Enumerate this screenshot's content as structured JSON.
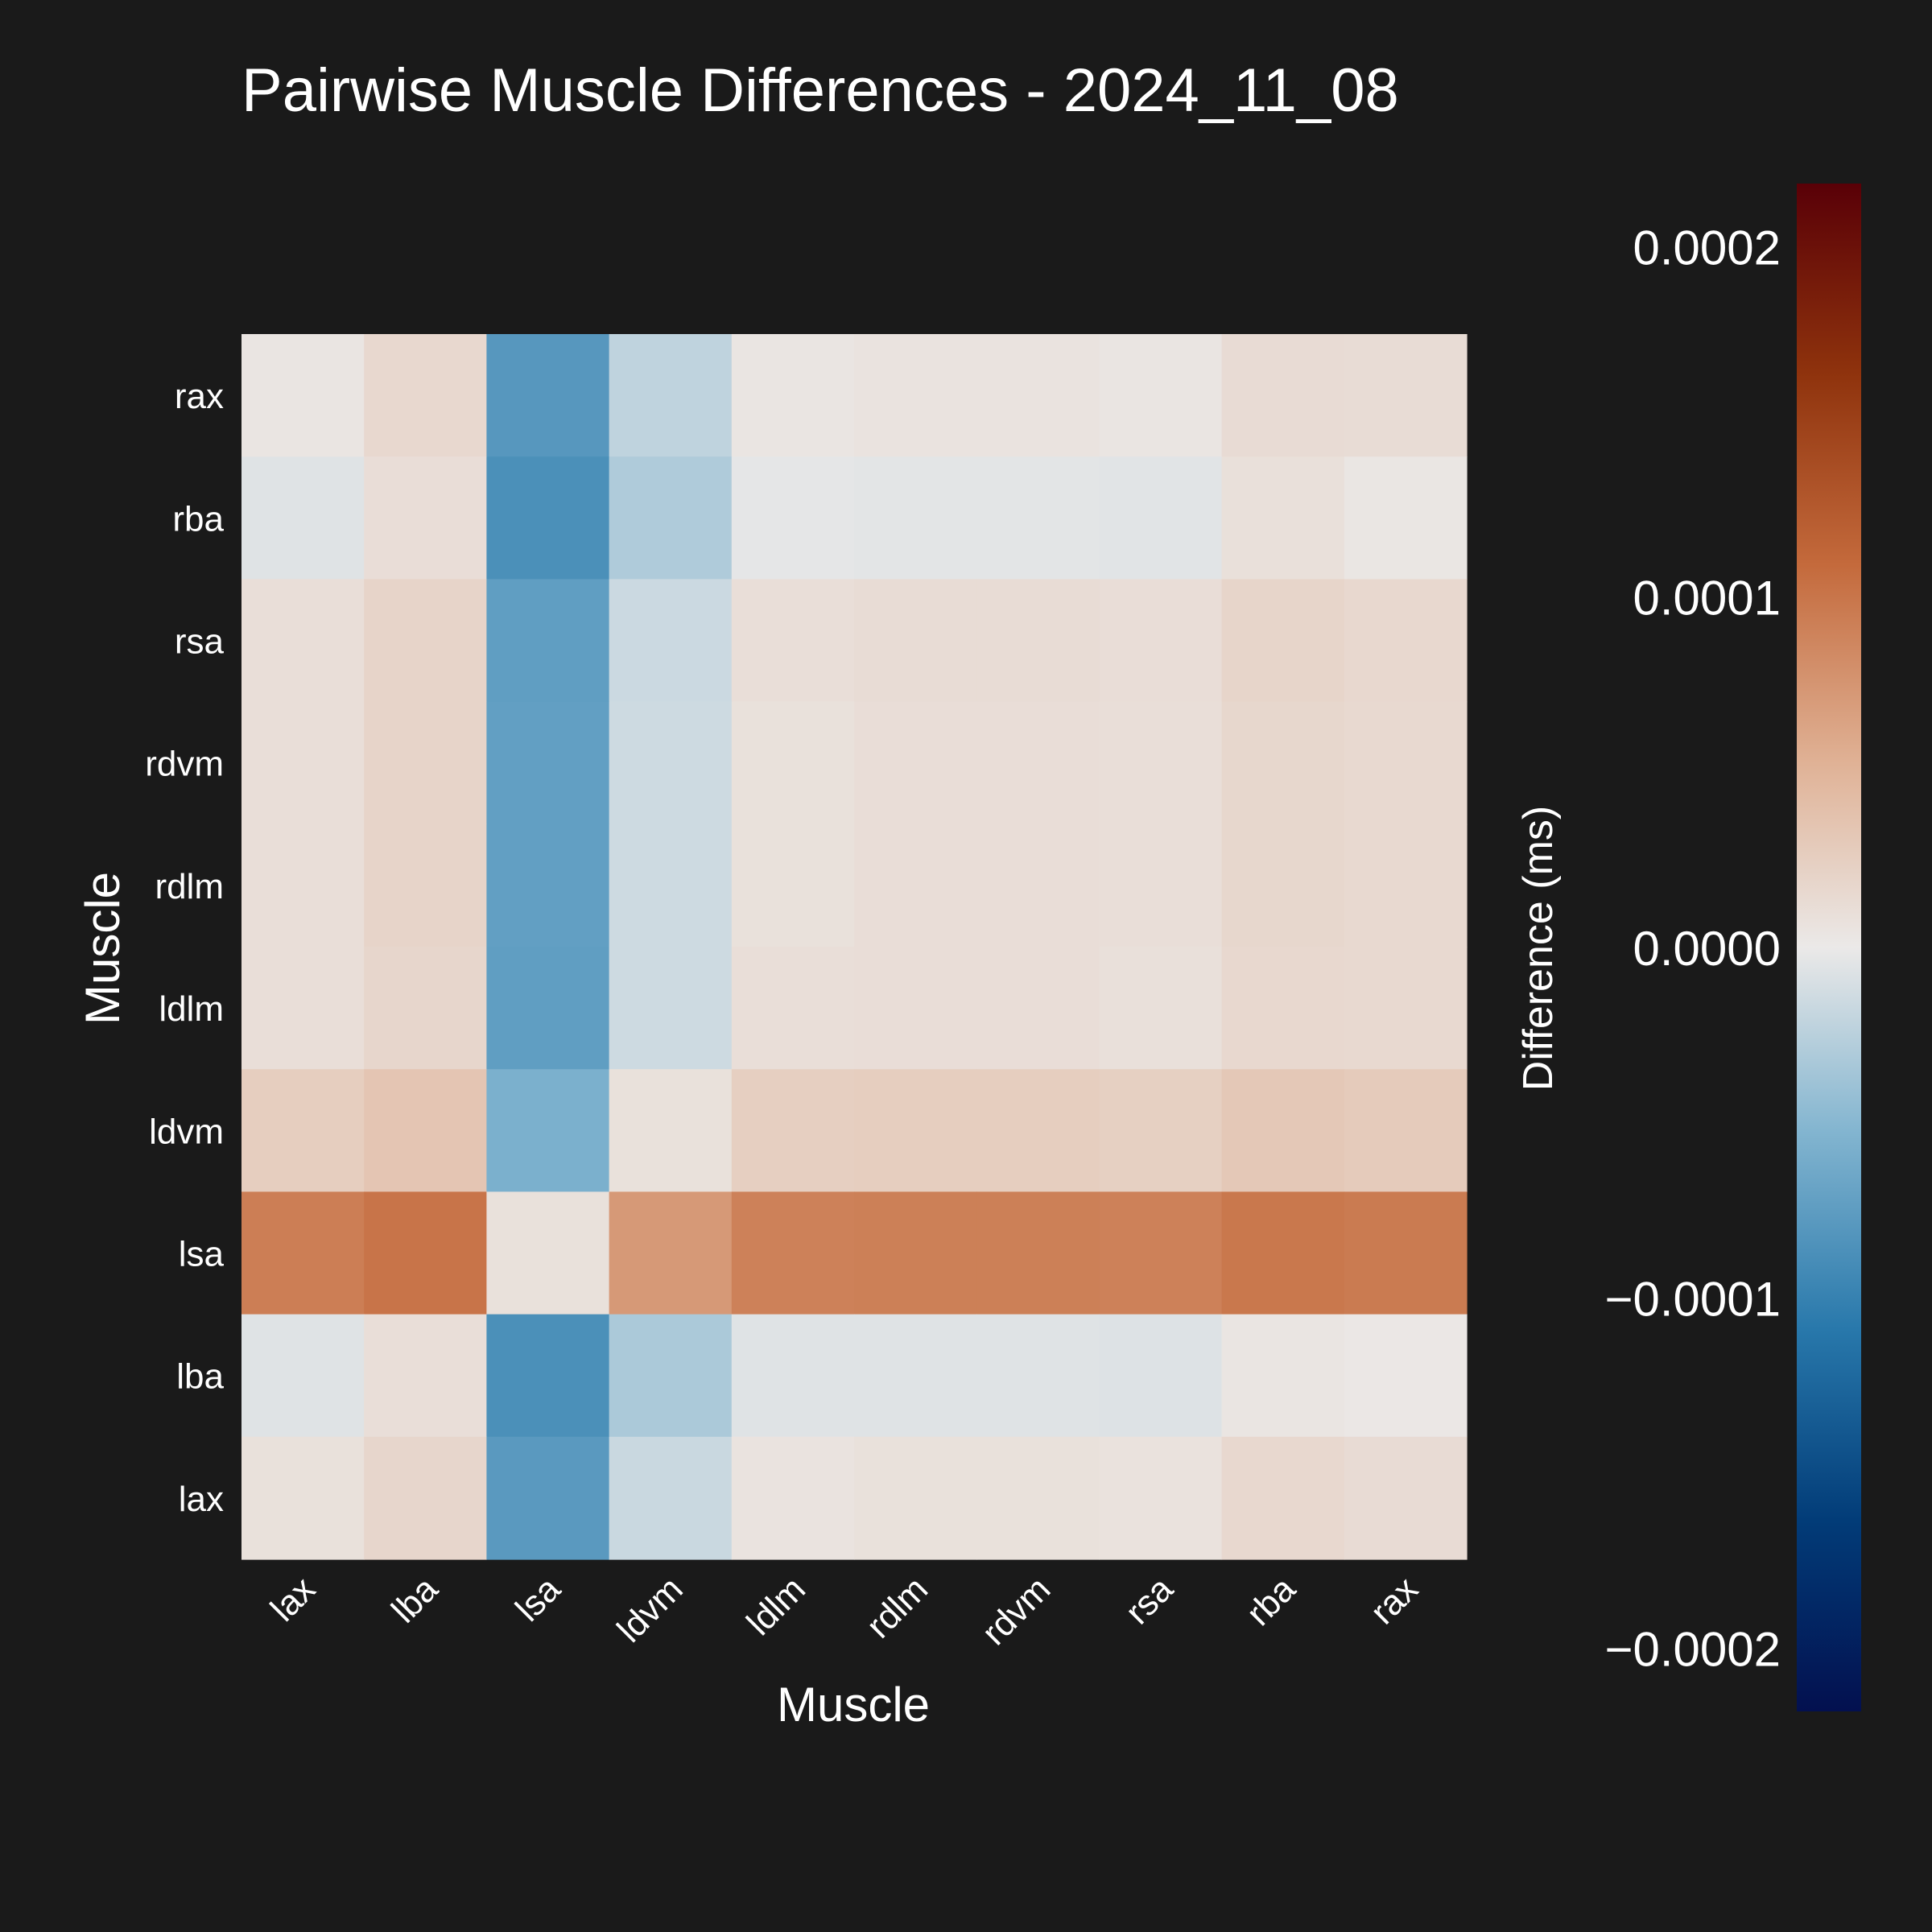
{
  "chart_data": {
    "type": "heatmap",
    "title": "Pairwise Muscle Differences - 2024_11_08",
    "xlabel": "Muscle",
    "ylabel": "Muscle",
    "colorbar_label": "Difference (ms)",
    "x_categories": [
      "lax",
      "lba",
      "lsa",
      "ldvm",
      "ldlm",
      "rdlm",
      "rdvm",
      "rsa",
      "rba",
      "rax"
    ],
    "y_categories_top_to_bottom": [
      "rax",
      "rba",
      "rsa",
      "rdvm",
      "rdlm",
      "ldlm",
      "ldvm",
      "lsa",
      "lba",
      "lax"
    ],
    "values": [
      [
        4e-06,
        1.6e-05,
        -8e-05,
        -2.2e-05,
        4e-06,
        6e-06,
        6e-06,
        4e-06,
        1.3e-05,
        1.2e-05
      ],
      [
        -6e-06,
        1.1e-05,
        -8.7e-05,
        -3e-05,
        -3e-06,
        -4e-06,
        -4e-06,
        -5e-06,
        9e-06,
        3e-06
      ],
      [
        1e-05,
        2e-05,
        -7.4e-05,
        -1.6e-05,
        1e-05,
        1.2e-05,
        1.2e-05,
        1.1e-05,
        1.9e-05,
        1.6e-05
      ],
      [
        1e-05,
        2e-05,
        -7.3e-05,
        -1.5e-05,
        8e-06,
        1.1e-05,
        1.1e-05,
        1e-05,
        1.7e-05,
        1.5e-05
      ],
      [
        1e-05,
        2e-05,
        -7.3e-05,
        -1.5e-05,
        8e-06,
        1.1e-05,
        1.1e-05,
        1e-05,
        1.7e-05,
        1.5e-05
      ],
      [
        1e-05,
        1.8e-05,
        -7.4e-05,
        -1.5e-05,
        1e-05,
        1.1e-05,
        1.1e-05,
        9e-06,
        1.6e-05,
        1.5e-05
      ],
      [
        2.6e-05,
        3.4e-05,
        -5.7e-05,
        8e-06,
        2.5e-05,
        2.6e-05,
        2.6e-05,
        2.4e-05,
        3.1e-05,
        2.9e-05
      ],
      [
        9.3e-05,
        0.000101,
        8e-06,
        7.2e-05,
        9.1e-05,
        9.2e-05,
        9.2e-05,
        9.1e-05,
        9.8e-05,
        9.6e-05
      ],
      [
        -6e-06,
        1e-05,
        -8.7e-05,
        -3.2e-05,
        -6e-06,
        -6e-06,
        -6e-06,
        -7e-06,
        4e-06,
        2e-06
      ],
      [
        8e-06,
        1.8e-05,
        -7.8e-05,
        -1.7e-05,
        6e-06,
        8e-06,
        8e-06,
        7e-06,
        1.6e-05,
        1.3e-05
      ]
    ],
    "colorbar": {
      "range": [
        -0.000218,
        0.000218
      ],
      "ticks": [
        0.0002,
        0.0001,
        0.0,
        -0.0001,
        -0.0002
      ],
      "tick_labels": [
        "0.0002",
        "0.0001",
        "0.0000",
        "−0.0001",
        "−0.0002"
      ],
      "colormap_stops": [
        {
          "t": 0.0,
          "color": "#03104f"
        },
        {
          "t": 0.125,
          "color": "#023c78"
        },
        {
          "t": 0.25,
          "color": "#2878ab"
        },
        {
          "t": 0.38,
          "color": "#83b5d0"
        },
        {
          "t": 0.5,
          "color": "#ebe9e8"
        },
        {
          "t": 0.62,
          "color": "#e0b296"
        },
        {
          "t": 0.75,
          "color": "#c46a3c"
        },
        {
          "t": 0.875,
          "color": "#8f330d"
        },
        {
          "t": 1.0,
          "color": "#590007"
        }
      ]
    },
    "grid": false,
    "colorbar_position": "right"
  }
}
